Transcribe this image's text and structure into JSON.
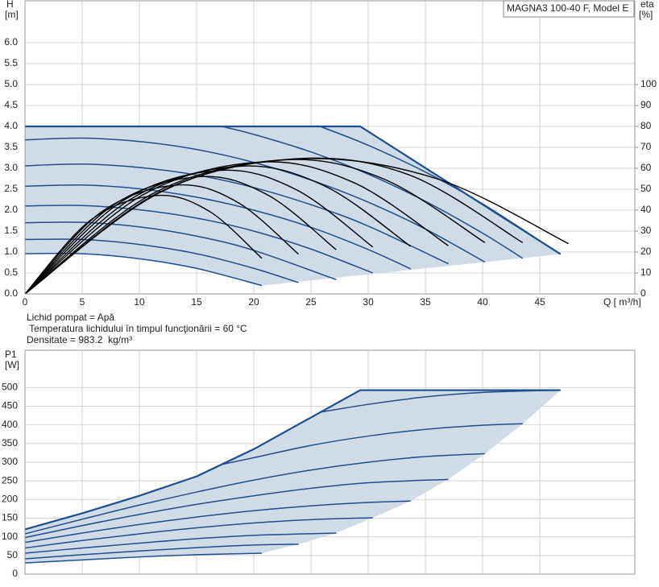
{
  "chart_data": [
    {
      "type": "line",
      "title": "MAGNA3 100-40 F, Model E",
      "ylabel": [
        "H",
        "[m]"
      ],
      "y2label": [
        "eta",
        "[%]"
      ],
      "xlabel": "Q [ m³/h]",
      "xlim": [
        0,
        53.3
      ],
      "xticks": [
        0,
        5,
        10,
        15,
        20,
        25,
        30,
        35,
        40,
        45
      ],
      "ylim": [
        0,
        7
      ],
      "yticks": [
        {
          "value": 0,
          "label": "0.0"
        },
        {
          "value": 0.5,
          "label": "0.5"
        },
        {
          "value": 1,
          "label": "1.0"
        },
        {
          "value": 1.5,
          "label": "1.5"
        },
        {
          "value": 2,
          "label": "2.0"
        },
        {
          "value": 2.5,
          "label": "2.5"
        },
        {
          "value": 3,
          "label": "3.0"
        },
        {
          "value": 3.5,
          "label": "3.5"
        },
        {
          "value": 4,
          "label": "4.0"
        },
        {
          "value": 4.5,
          "label": "4.5"
        },
        {
          "value": 5,
          "label": "5.0"
        },
        {
          "value": 5.5,
          "label": "5.5"
        },
        {
          "value": 6,
          "label": "6.0"
        }
      ],
      "y2lim": [
        0,
        140
      ],
      "y2ticks": [
        0,
        10,
        20,
        30,
        40,
        50,
        60,
        70,
        80,
        90,
        100
      ],
      "grid": true,
      "series": [
        {
          "kind": "area",
          "color": "#cfdbe7",
          "x": [
            0,
            29.3,
            46.8,
            20.7,
            15,
            10,
            5,
            0
          ],
          "values": [
            4,
            4,
            0.95,
            0.2,
            0.61,
            0.84,
            0.96,
            0.96
          ]
        },
        {
          "color": "#1f4e8c",
          "x": [
            0,
            5,
            10,
            15,
            20.7
          ],
          "values": [
            0.96,
            0.96,
            0.84,
            0.61,
            0.2
          ]
        },
        {
          "color": "#1f4e8c",
          "x": [
            0,
            5,
            10,
            15,
            20,
            23.9
          ],
          "values": [
            1.3,
            1.3,
            1.18,
            0.96,
            0.61,
            0.27
          ]
        },
        {
          "color": "#1f4e8c",
          "x": [
            0,
            5,
            10,
            15,
            20,
            27.2
          ],
          "values": [
            1.7,
            1.71,
            1.6,
            1.38,
            1.04,
            0.34
          ]
        },
        {
          "color": "#1f4e8c",
          "x": [
            0,
            5,
            10,
            15,
            20,
            25,
            30.4
          ],
          "values": [
            2.1,
            2.11,
            2.01,
            1.81,
            1.5,
            1.07,
            0.5
          ]
        },
        {
          "color": "#1f4e8c",
          "x": [
            0,
            5,
            10,
            15,
            20,
            25,
            30,
            33.7
          ],
          "values": [
            2.57,
            2.6,
            2.51,
            2.31,
            2,
            1.59,
            1.06,
            0.6
          ]
        },
        {
          "color": "#1f4e8c",
          "x": [
            0,
            5,
            10,
            15,
            20,
            25,
            30,
            37
          ],
          "values": [
            3.06,
            3.1,
            3.02,
            2.84,
            2.54,
            2.13,
            1.62,
            0.72
          ]
        },
        {
          "color": "#1f4e8c",
          "x": [
            0,
            5,
            10,
            15,
            20,
            25,
            30,
            35,
            40.2
          ],
          "values": [
            3.68,
            3.72,
            3.64,
            3.45,
            3.14,
            2.72,
            2.19,
            1.55,
            0.76
          ]
        },
        {
          "color": "#1f4e8c",
          "x": [
            17.2,
            20,
            25,
            30,
            35,
            40,
            43.5
          ],
          "values": [
            4,
            3.81,
            3.39,
            2.86,
            2.21,
            1.45,
            0.85
          ]
        },
        {
          "color": "#1f4e8c",
          "x": [
            25.8,
            30,
            35,
            40,
            46.8
          ],
          "values": [
            4,
            3.55,
            2.91,
            2.15,
            0.95
          ]
        },
        {
          "kind": "limit",
          "color": "#1f4e8c",
          "x": [
            0,
            29.3,
            46.8
          ],
          "values": [
            4,
            4,
            0.95
          ]
        },
        {
          "axis": "y2",
          "color": "#000000",
          "x": [
            0,
            5.75,
            11.5,
            16.1,
            20.7
          ],
          "values": [
            0,
            35.3,
            47,
            39.5,
            17
          ]
        },
        {
          "axis": "y2",
          "color": "#000000",
          "x": [
            0,
            6.65,
            13.3,
            18.6,
            23.9
          ],
          "values": [
            0,
            39,
            52,
            43.7,
            19
          ]
        },
        {
          "axis": "y2",
          "color": "#000000",
          "x": [
            0,
            7.6,
            15.2,
            21.2,
            27.2
          ],
          "values": [
            0,
            42,
            56,
            47.3,
            21.1
          ]
        },
        {
          "axis": "y2",
          "color": "#000000",
          "x": [
            0,
            8.5,
            17,
            23.7,
            30.4
          ],
          "values": [
            0,
            44.3,
            59,
            49.8,
            22.4
          ]
        },
        {
          "axis": "y2",
          "color": "#000000",
          "x": [
            0,
            9.4,
            18.8,
            26.25,
            33.7
          ],
          "values": [
            0,
            45.8,
            61,
            51.4,
            22.7
          ]
        },
        {
          "axis": "y2",
          "color": "#000000",
          "x": [
            0,
            10.3,
            20.6,
            28.8,
            37
          ],
          "values": [
            0,
            47.3,
            63,
            53,
            23
          ]
        },
        {
          "axis": "y2",
          "color": "#000000",
          "x": [
            0,
            11.2,
            22.5,
            31.3,
            40.2
          ],
          "values": [
            0,
            48,
            64,
            55,
            24.5
          ]
        },
        {
          "axis": "y2",
          "color": "#000000",
          "x": [
            0,
            11.7,
            23.5,
            33.5,
            43.5
          ],
          "values": [
            0,
            48.5,
            64.5,
            57,
            24.5
          ]
        },
        {
          "axis": "y2",
          "color": "#000000",
          "x": [
            0,
            12,
            24,
            36,
            47.5
          ],
          "values": [
            0,
            49,
            64.5,
            55,
            24
          ]
        }
      ]
    },
    {
      "type": "line",
      "ylabel": [
        "P1",
        "[W]"
      ],
      "xlim": [
        0,
        53.3
      ],
      "xticks": [
        0,
        5,
        10,
        15,
        20,
        25,
        30,
        35,
        40,
        45
      ],
      "ylim": [
        0,
        600
      ],
      "yticks": [
        0,
        50,
        100,
        150,
        200,
        250,
        300,
        350,
        400,
        450,
        500
      ],
      "grid": true,
      "series": [
        {
          "kind": "area",
          "color": "#cfdbe7",
          "x": [
            0,
            5,
            10,
            15,
            20,
            25,
            29.3,
            46.8,
            43.5,
            40.2,
            37,
            33.7,
            30.4,
            27.2,
            23.9,
            20.7,
            15,
            10,
            5,
            0
          ],
          "values": [
            120,
            163,
            210,
            262,
            335,
            420,
            493,
            493,
            403,
            323,
            254,
            196,
            151,
            110,
            80,
            56,
            52,
            46,
            38,
            30
          ]
        },
        {
          "color": "#1f4e8c",
          "x": [
            0,
            5,
            10,
            15,
            20.7
          ],
          "values": [
            30,
            38,
            46,
            52,
            56
          ]
        },
        {
          "color": "#1f4e8c",
          "x": [
            0,
            5,
            10,
            15,
            20,
            23.9
          ],
          "values": [
            41,
            52,
            62,
            71,
            78,
            80
          ]
        },
        {
          "color": "#1f4e8c",
          "x": [
            0,
            5,
            10,
            15,
            20,
            27.2
          ],
          "values": [
            56,
            70,
            83,
            95,
            104,
            110
          ]
        },
        {
          "color": "#1f4e8c",
          "x": [
            0,
            5,
            10,
            15,
            20,
            25,
            30.4
          ],
          "values": [
            70,
            90,
            108,
            124,
            137,
            146,
            151
          ]
        },
        {
          "color": "#1f4e8c",
          "x": [
            0,
            5,
            10,
            15,
            20,
            25,
            30,
            33.7
          ],
          "values": [
            85,
            110,
            133,
            153,
            170,
            183,
            192,
            196
          ]
        },
        {
          "color": "#1f4e8c",
          "x": [
            0,
            5,
            10,
            15,
            20,
            25,
            30,
            37
          ],
          "values": [
            98,
            130,
            160,
            187,
            210,
            230,
            245,
            254
          ]
        },
        {
          "color": "#1f4e8c",
          "x": [
            0,
            5,
            10,
            15,
            20,
            25,
            30,
            35,
            40.2
          ],
          "values": [
            108,
            147,
            185,
            220,
            252,
            279,
            300,
            315,
            323
          ]
        },
        {
          "color": "#1f4e8c",
          "x": [
            17.2,
            20,
            25,
            30,
            35,
            40,
            43.5
          ],
          "values": [
            294,
            312,
            345,
            370,
            388,
            399,
            403
          ]
        },
        {
          "color": "#1f4e8c",
          "x": [
            25.8,
            30,
            35,
            40,
            46.8
          ],
          "values": [
            434,
            455,
            475,
            487,
            493
          ]
        },
        {
          "kind": "limit",
          "color": "#1f4e8c",
          "x": [
            0,
            5,
            10,
            15,
            20,
            25,
            29.3,
            46.8
          ],
          "values": [
            120,
            163,
            210,
            262,
            335,
            420,
            493,
            493
          ]
        }
      ]
    }
  ],
  "notes": [
    "Lichid pompat = Apă",
    " Temperatura lichidului în timpul funcţionării = 60 °C",
    "Densitate = 983.2  kg/m³"
  ]
}
